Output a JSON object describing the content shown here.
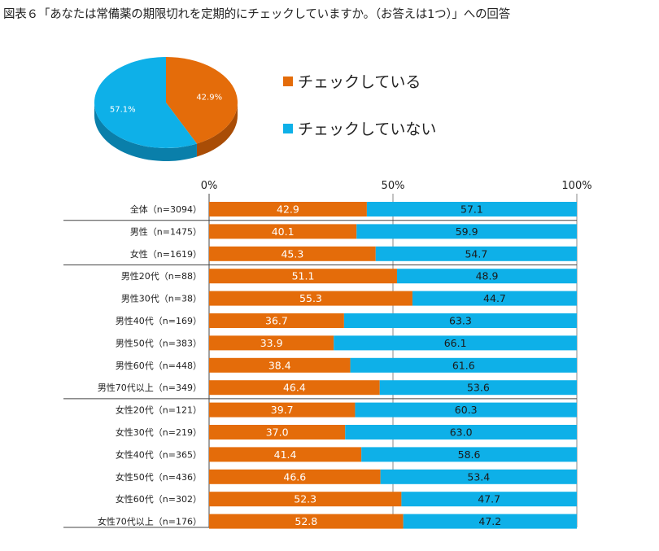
{
  "title": "図表６「あなたは常備薬の期限切れを定期的にチェックしていますか。（お答えは1つ）」への回答",
  "colors": {
    "check": "#E46C0A",
    "no_check": "#0EB0E8",
    "check_dark": "#A94D06",
    "no_check_dark": "#0A7FAA"
  },
  "legend": [
    {
      "label": "チェックしている",
      "color": "#E46C0A"
    },
    {
      "label": "チェックしていない",
      "color": "#0EB0E8"
    }
  ],
  "chart_data": [
    {
      "type": "pie",
      "title": "",
      "labels": [
        "チェックしている",
        "チェックしていない"
      ],
      "values": [
        42.9,
        57.1
      ],
      "value_labels": [
        "42.9%",
        "57.1%"
      ]
    },
    {
      "type": "bar",
      "orientation": "horizontal",
      "stacked": true,
      "title": "",
      "xticks": [
        "0%",
        "50%",
        "100%"
      ],
      "xlim": [
        0,
        100
      ],
      "categories": [
        "全体（n=3094）",
        "男性（n=1475）",
        "女性（n=1619）",
        "男性20代（n=88）",
        "男性30代（n=38）",
        "男性40代（n=169）",
        "男性50代（n=383）",
        "男性60代（n=448）",
        "男性70代以上（n=349）",
        "女性20代（n=121）",
        "女性30代（n=219）",
        "女性40代（n=365）",
        "女性50代（n=436）",
        "女性60代（n=302）",
        "女性70代以上（n=176）"
      ],
      "series": [
        {
          "name": "チェックしている",
          "values": [
            42.9,
            40.1,
            45.3,
            51.1,
            55.3,
            36.7,
            33.9,
            38.4,
            46.4,
            39.7,
            37.0,
            41.4,
            46.6,
            52.3,
            52.8
          ],
          "labels": [
            "42.9",
            "40.1",
            "45.3",
            "51.1",
            "55.3",
            "36.7",
            "33.9",
            "38.4",
            "46.4",
            "39.7",
            "37.0",
            "41.4",
            "46.6",
            "52.3",
            "52.8"
          ]
        },
        {
          "name": "チェックしていない",
          "values": [
            57.1,
            59.9,
            54.7,
            48.9,
            44.7,
            63.3,
            66.1,
            61.6,
            53.6,
            60.3,
            63.0,
            58.6,
            53.4,
            47.7,
            47.2
          ],
          "labels": [
            "57.1",
            "59.9",
            "54.7",
            "48.9",
            "44.7",
            "63.3",
            "66.1",
            "61.6",
            "53.6",
            "60.3",
            "63.0",
            "58.6",
            "53.4",
            "47.7",
            "47.2"
          ]
        }
      ],
      "group_breaks_after": [
        0,
        2,
        8
      ]
    }
  ]
}
